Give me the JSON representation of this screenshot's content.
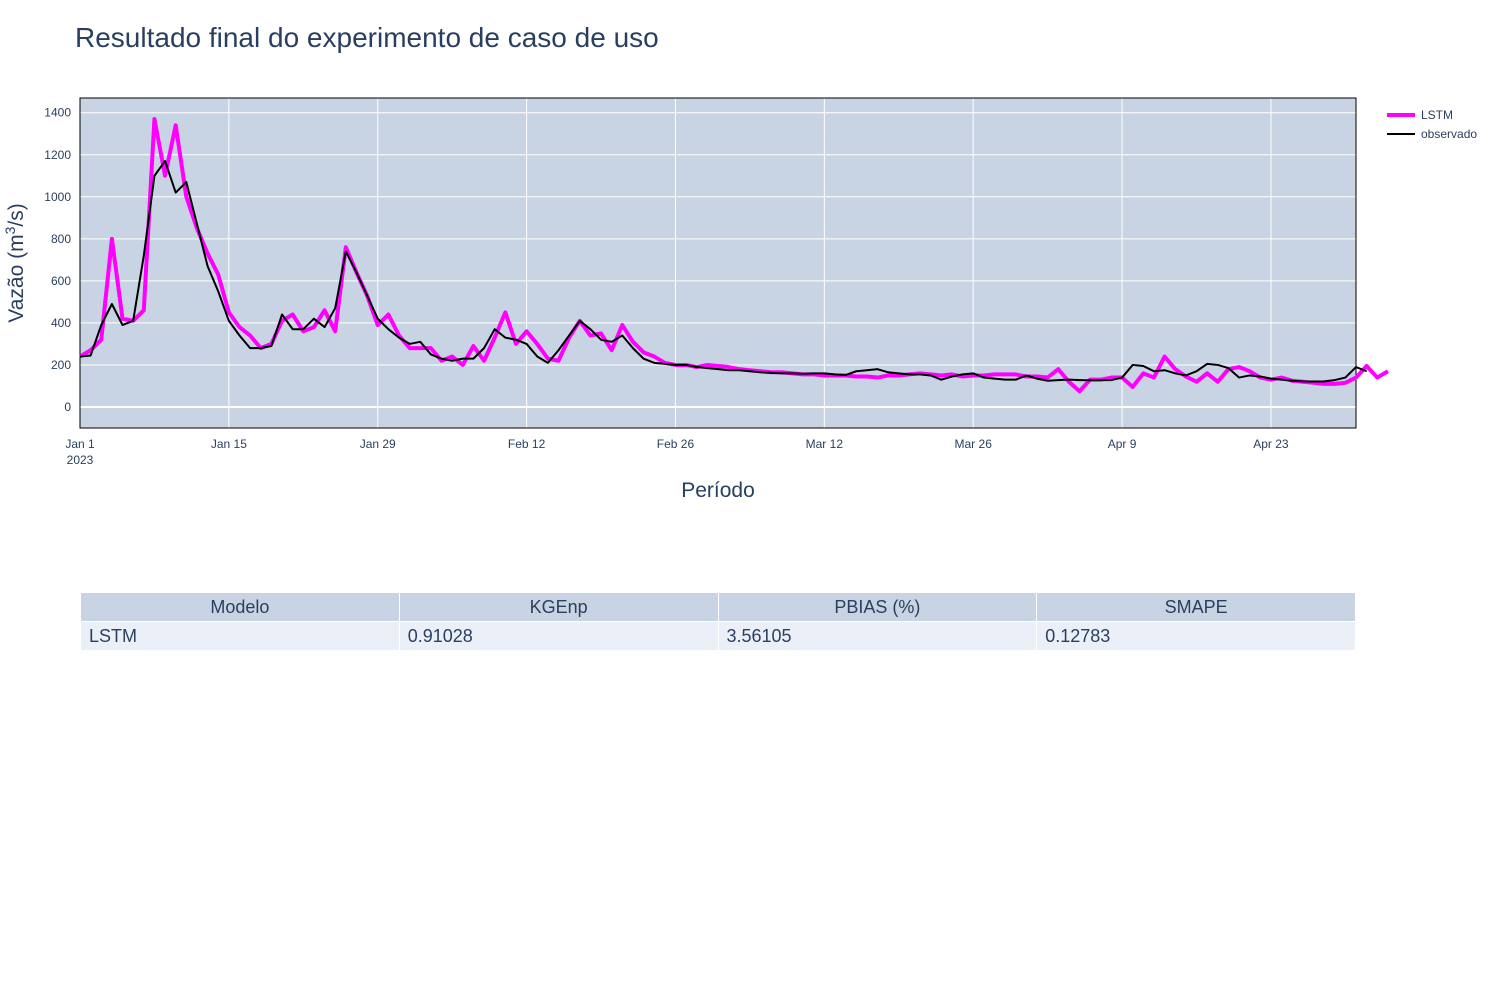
{
  "page": {
    "title": "Resultado final do experimento de caso de uso"
  },
  "colors": {
    "plot_bg": "#c8d4e3",
    "grid": "#ffffff",
    "lstm": "#ff00ff",
    "observed": "#000000",
    "text": "#2a3f5f"
  },
  "chart_data": {
    "type": "line",
    "title": "Resultado final do experimento de caso de uso",
    "xlabel": "Período",
    "ylabel": "Vazão (m³/s)",
    "ylabel_parts": {
      "base": "Vazão (m",
      "sup": "3",
      "tail": "/s)"
    },
    "x_start": "2023-01-01",
    "x_range": [
      "2023-01-01",
      "2023-05-01"
    ],
    "ylim": [
      -100,
      1470
    ],
    "y_ticks": [
      0,
      200,
      400,
      600,
      800,
      1000,
      1200,
      1400
    ],
    "x_ticks": [
      {
        "label": "Jan 1",
        "sub": "2023",
        "date": "2023-01-01"
      },
      {
        "label": "Jan 15",
        "sub": "",
        "date": "2023-01-15"
      },
      {
        "label": "Jan 29",
        "sub": "",
        "date": "2023-01-29"
      },
      {
        "label": "Feb 12",
        "sub": "",
        "date": "2023-02-12"
      },
      {
        "label": "Feb 26",
        "sub": "",
        "date": "2023-02-26"
      },
      {
        "label": "Mar 12",
        "sub": "",
        "date": "2023-03-12"
      },
      {
        "label": "Mar 26",
        "sub": "",
        "date": "2023-03-26"
      },
      {
        "label": "Apr 9",
        "sub": "",
        "date": "2023-04-09"
      },
      {
        "label": "Apr 23",
        "sub": "",
        "date": "2023-04-23"
      }
    ],
    "grid": true,
    "legend_position": "top-right, outside plot",
    "series": [
      {
        "name": "LSTM",
        "color": "#ff00ff",
        "values": [
          240,
          270,
          320,
          800,
          420,
          410,
          460,
          1370,
          1100,
          1340,
          1000,
          850,
          730,
          630,
          450,
          380,
          340,
          280,
          300,
          410,
          440,
          360,
          380,
          460,
          360,
          760,
          640,
          530,
          390,
          440,
          340,
          280,
          280,
          280,
          220,
          240,
          200,
          290,
          220,
          330,
          450,
          300,
          360,
          300,
          230,
          220,
          330,
          410,
          340,
          350,
          270,
          390,
          310,
          260,
          240,
          210,
          200,
          200,
          190,
          200,
          195,
          190,
          180,
          175,
          170,
          165,
          165,
          160,
          155,
          155,
          150,
          150,
          150,
          145,
          145,
          140,
          150,
          150,
          155,
          160,
          155,
          150,
          155,
          145,
          150,
          150,
          155,
          155,
          155,
          145,
          145,
          140,
          180,
          120,
          75,
          130,
          130,
          140,
          140,
          95,
          160,
          140,
          240,
          180,
          145,
          120,
          160,
          120,
          180,
          190,
          170,
          140,
          130,
          140,
          125,
          120,
          115,
          110,
          110,
          115,
          140,
          195,
          140,
          170
        ],
        "width": 4
      },
      {
        "name": "observado",
        "color": "#000000",
        "values": [
          240,
          245,
          390,
          490,
          390,
          410,
          720,
          1100,
          1170,
          1020,
          1070,
          870,
          670,
          550,
          410,
          340,
          280,
          280,
          290,
          440,
          370,
          370,
          420,
          380,
          470,
          740,
          640,
          530,
          420,
          370,
          330,
          300,
          310,
          250,
          230,
          220,
          230,
          230,
          280,
          370,
          330,
          320,
          300,
          240,
          210,
          270,
          340,
          410,
          370,
          320,
          310,
          340,
          280,
          230,
          210,
          205,
          200,
          200,
          190,
          185,
          180,
          175,
          175,
          170,
          165,
          162,
          160,
          160,
          158,
          160,
          160,
          155,
          152,
          170,
          175,
          180,
          165,
          160,
          155,
          155,
          150,
          130,
          145,
          155,
          160,
          140,
          135,
          130,
          130,
          150,
          135,
          125,
          128,
          130,
          128,
          127,
          128,
          128,
          140,
          200,
          195,
          170,
          175,
          160,
          150,
          170,
          205,
          200,
          185,
          140,
          150,
          145,
          135,
          130,
          125,
          122,
          121,
          122,
          128,
          140,
          190,
          170
        ],
        "width": 2
      }
    ]
  },
  "table": {
    "headers": [
      "Modelo",
      "KGEnp",
      "PBIAS (%)",
      "SMAPE"
    ],
    "rows": [
      [
        "LSTM",
        "0.91028",
        "3.56105",
        "0.12783"
      ]
    ]
  }
}
